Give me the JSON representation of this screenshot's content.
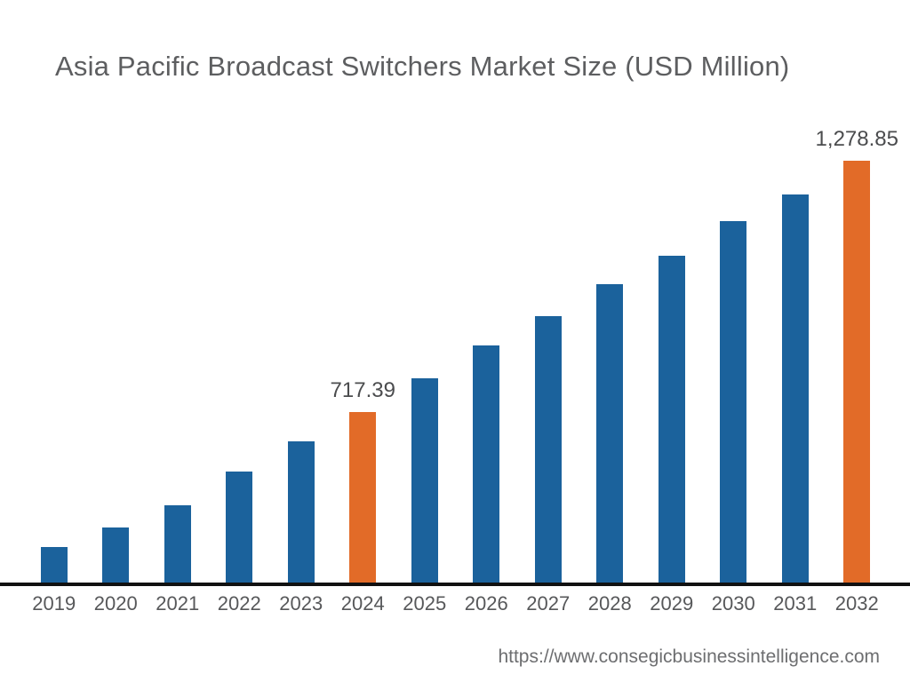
{
  "chart_data": {
    "type": "bar",
    "title": "Asia Pacific Broadcast Switchers Market Size (USD Million)",
    "categories": [
      "2019",
      "2020",
      "2021",
      "2022",
      "2023",
      "2024",
      "2025",
      "2026",
      "2027",
      "2028",
      "2029",
      "2030",
      "2031",
      "2032"
    ],
    "values": [
      416,
      460,
      509,
      584,
      652,
      717.39,
      793,
      866,
      932,
      1003,
      1067,
      1144,
      1203,
      1278.85
    ],
    "data_labels": [
      {
        "category": "2024",
        "text": "717.39"
      },
      {
        "category": "2032",
        "text": "1,278.85"
      }
    ],
    "highlighted_categories": [
      "2024",
      "2032"
    ],
    "values_estimated_except": [
      "2024",
      "2032"
    ],
    "xlabel": "",
    "ylabel": "",
    "ylim": [
      336.5,
      1278.85
    ],
    "grid": false,
    "legend": false
  },
  "footer": {
    "url": "https://www.consegicbusinessintelligence.com"
  },
  "colors": {
    "bar_default": "#1b629c",
    "bar_highlight": "#e26b28",
    "axis_line": "#111111",
    "title": "#5d5e60",
    "tick_label": "#57585a",
    "data_label": "#4b4c4e",
    "url_text": "#6d6e70"
  }
}
